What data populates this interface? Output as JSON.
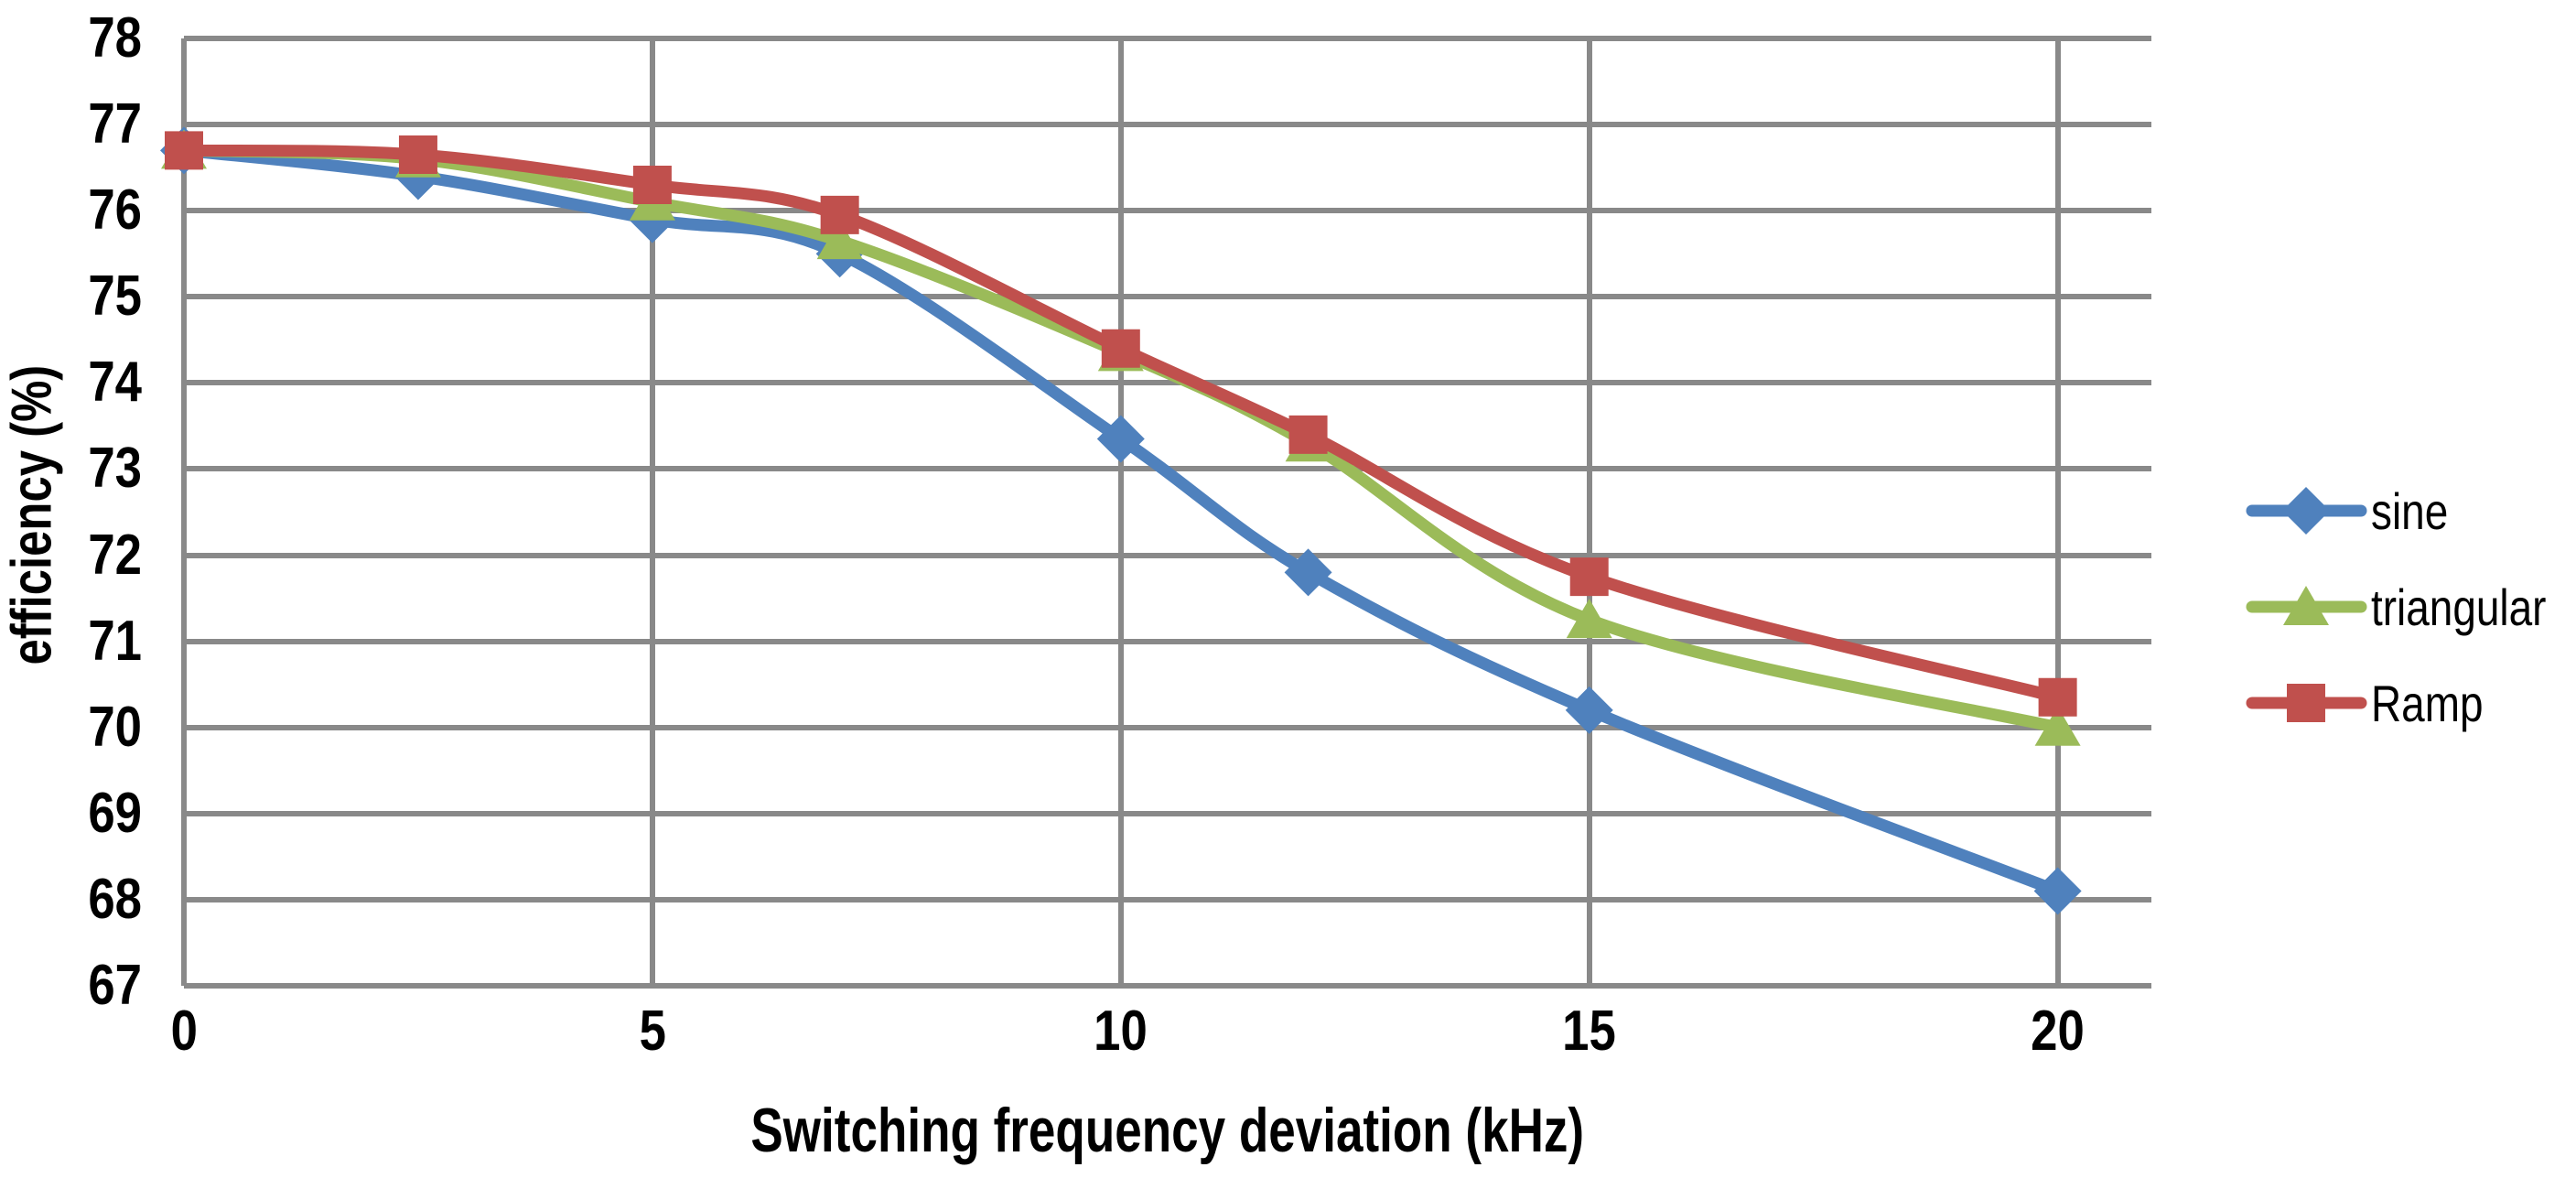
{
  "chart_data": {
    "type": "line",
    "title": "",
    "xlabel": "Switching frequency deviation (kHz)",
    "ylabel": "efficiency (%)",
    "x": [
      0,
      2.5,
      5,
      7,
      10,
      12,
      15,
      20
    ],
    "series": [
      {
        "name": "sine",
        "marker": "diamond",
        "color": "#4F81BD",
        "values": [
          76.7,
          76.4,
          75.9,
          75.5,
          73.35,
          71.8,
          70.2,
          68.1
        ]
      },
      {
        "name": "triangular",
        "marker": "triangle",
        "color": "#9BBB59",
        "values": [
          76.7,
          76.6,
          76.1,
          75.65,
          74.35,
          73.3,
          71.25,
          70.0
        ]
      },
      {
        "name": "Ramp",
        "marker": "square",
        "color": "#C0504D",
        "values": [
          76.7,
          76.65,
          76.3,
          75.95,
          74.4,
          73.4,
          71.75,
          70.35
        ]
      }
    ],
    "xlim": [
      0,
      21
    ],
    "ylim": [
      67,
      78
    ],
    "xticks": [
      0,
      5,
      10,
      15,
      20
    ],
    "yticks": [
      67,
      68,
      69,
      70,
      71,
      72,
      73,
      74,
      75,
      76,
      77,
      78
    ],
    "grid": true,
    "gridline_color": "#898989",
    "background_color": "#FFFFFF",
    "text_color": "#000000",
    "legend_position": "right",
    "line_smoothing": true
  }
}
